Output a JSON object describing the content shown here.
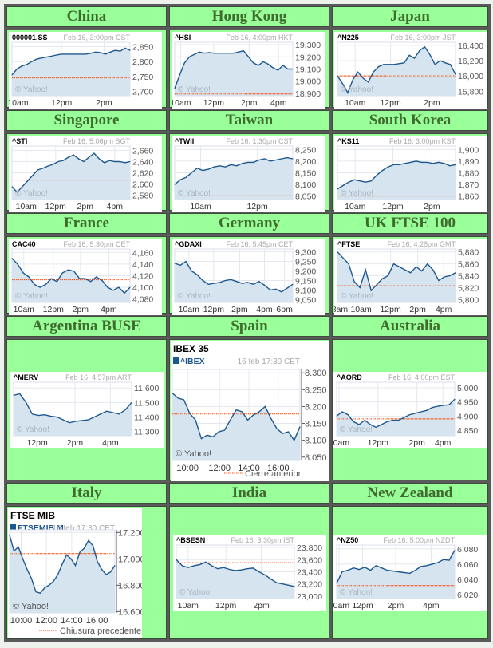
{
  "colors": {
    "cell": "#99ff99",
    "header_text": "#3f6b2f",
    "fill": "#d5e4ef",
    "line": "#1d5790",
    "prev_close": "#ff4400"
  },
  "chart_data": [
    {
      "type": "area",
      "region": "China",
      "symbol": "000001.SS",
      "date": "Feb 16, 3:00pm CST",
      "watermark": "© Yahoo!",
      "ylim": [
        2685,
        2865
      ],
      "yticks": [
        2700,
        2750,
        2800,
        2850
      ],
      "ytick_labels": [
        "2,700",
        "2,750",
        "2,800",
        "2,850"
      ],
      "xticks": [
        0.05,
        0.42,
        0.78
      ],
      "xtick_labels": [
        "10am",
        "12pm",
        "2pm"
      ],
      "prev_close": 2745,
      "values": [
        2755,
        2775,
        2785,
        2790,
        2800,
        2808,
        2812,
        2815,
        2818,
        2822,
        2825,
        2825,
        2825,
        2825,
        2825,
        2825,
        2828,
        2832,
        2830,
        2825,
        2832,
        2838,
        2835,
        2845,
        2838
      ]
    },
    {
      "type": "area",
      "region": "Hong Kong",
      "symbol": "^HSI",
      "date": "Feb 16, 4:00pm HKT",
      "watermark": "© Yahoo!",
      "ylim": [
        18880,
        19320
      ],
      "yticks": [
        18900,
        19000,
        19100,
        19200,
        19300
      ],
      "ytick_labels": [
        "18,900",
        "19,000",
        "19,100",
        "19,200",
        "19,300"
      ],
      "xticks": [
        0.05,
        0.33,
        0.63,
        0.88
      ],
      "xtick_labels": [
        "10am",
        "12pm",
        "2pm",
        "4pm"
      ],
      "prev_close": 18895,
      "values": [
        18940,
        19050,
        19150,
        19200,
        19220,
        19240,
        19230,
        19235,
        19230,
        19230,
        19230,
        19230,
        19230,
        19240,
        19250,
        19200,
        19150,
        19130,
        19160,
        19140,
        19110,
        19090,
        19130,
        19100,
        19100
      ]
    },
    {
      "type": "area",
      "region": "Japan",
      "symbol": "^N225",
      "date": "Feb 16, 3:00pm JST",
      "watermark": "© Yahoo!",
      "ylim": [
        15740,
        16440
      ],
      "yticks": [
        15800,
        16000,
        16200,
        16400
      ],
      "ytick_labels": [
        "15,800",
        "16,000",
        "16,200",
        "16,400"
      ],
      "xticks": [
        0.15,
        0.45,
        0.8
      ],
      "xtick_labels": [
        "10am",
        "12pm",
        "2pm"
      ],
      "prev_close": 16000,
      "values": [
        16000,
        15900,
        15780,
        15950,
        16050,
        15970,
        15920,
        16050,
        16120,
        16150,
        16150,
        16150,
        16160,
        16170,
        16270,
        16230,
        16330,
        16380,
        16280,
        16150,
        16200,
        16170,
        16150,
        16020
      ]
    },
    {
      "type": "area",
      "region": "Singapore",
      "symbol": "^STI",
      "date": "Feb 16, 5:06pm SGT",
      "watermark": "© Yahoo!",
      "ylim": [
        2572,
        2668
      ],
      "yticks": [
        2580,
        2600,
        2620,
        2640,
        2660
      ],
      "ytick_labels": [
        "2,580",
        "2,600",
        "2,620",
        "2,640",
        "2,660"
      ],
      "xticks": [
        0.12,
        0.37,
        0.62,
        0.87
      ],
      "xtick_labels": [
        "10am",
        "12pm",
        "2pm",
        "4pm"
      ],
      "prev_close": 2607,
      "values": [
        2595,
        2585,
        2595,
        2605,
        2615,
        2625,
        2628,
        2632,
        2635,
        2640,
        2642,
        2648,
        2652,
        2645,
        2640,
        2648,
        2655,
        2645,
        2638,
        2642,
        2640,
        2640,
        2638,
        2640
      ]
    },
    {
      "type": "area",
      "region": "Taiwan",
      "symbol": "^TWII",
      "date": "Feb 16, 1:30pm CST",
      "watermark": "© Yahoo!",
      "ylim": [
        8035,
        8265
      ],
      "yticks": [
        8050,
        8100,
        8150,
        8200,
        8250
      ],
      "ytick_labels": [
        "8,050",
        "8,100",
        "8,150",
        "8,200",
        "8,250"
      ],
      "xticks": [
        0.22,
        0.7
      ],
      "xtick_labels": [
        "10am",
        "12pm"
      ],
      "prev_close": 8051,
      "values": [
        8100,
        8120,
        8130,
        8150,
        8170,
        8160,
        8165,
        8175,
        8180,
        8175,
        8185,
        8180,
        8190,
        8195,
        8195,
        8205,
        8210,
        8200,
        8205,
        8210,
        8215,
        8210
      ]
    },
    {
      "type": "area",
      "region": "South Korea",
      "symbol": "^KS11",
      "date": "Feb 16, 3:00pm KST",
      "watermark": "© Yahoo!",
      "ylim": [
        1857,
        1903
      ],
      "yticks": [
        1860,
        1870,
        1880,
        1890,
        1900
      ],
      "ytick_labels": [
        "1,860",
        "1,870",
        "1,880",
        "1,890",
        "1,900"
      ],
      "xticks": [
        0.15,
        0.47,
        0.8
      ],
      "xtick_labels": [
        "10am",
        "12pm",
        "2pm"
      ],
      "prev_close": 1860,
      "values": [
        1866,
        1869,
        1872,
        1874,
        1873,
        1872,
        1873,
        1878,
        1882,
        1885,
        1887,
        1887,
        1888,
        1889,
        1890,
        1889,
        1889,
        1888,
        1889,
        1888,
        1886,
        1887
      ]
    },
    {
      "type": "area",
      "region": "France",
      "symbol": "CAC40",
      "date": "Feb 16, 5:30pm CET",
      "watermark": "© Yahoo!",
      "ylim": [
        4074,
        4166
      ],
      "yticks": [
        4080,
        4100,
        4120,
        4140,
        4160
      ],
      "ytick_labels": [
        "4,080",
        "4,100",
        "4,120",
        "4,140",
        "4,160"
      ],
      "xticks": [
        0.1,
        0.35,
        0.58,
        0.82
      ],
      "xtick_labels": [
        "10am",
        "12pm",
        "2pm",
        "4pm"
      ],
      "prev_close": 4113,
      "values": [
        4150,
        4140,
        4125,
        4118,
        4105,
        4100,
        4105,
        4115,
        4110,
        4125,
        4130,
        4128,
        4115,
        4115,
        4110,
        4118,
        4112,
        4100,
        4095,
        4100,
        4090,
        4100
      ]
    },
    {
      "type": "area",
      "region": "Germany",
      "symbol": "^GDAXI",
      "date": "Feb 16, 5:45pm CET",
      "watermark": "© Yahoo!",
      "ylim": [
        9035,
        9315
      ],
      "yticks": [
        9050,
        9100,
        9150,
        9200,
        9250,
        9300
      ],
      "ytick_labels": [
        "9,050",
        "9,100",
        "9,150",
        "9,200",
        "9,250",
        "9,300"
      ],
      "xticks": [
        0.12,
        0.33,
        0.55,
        0.76,
        0.93
      ],
      "xtick_labels": [
        "10am",
        "12pm",
        "2pm",
        "4pm",
        "6pm"
      ],
      "prev_close": 9200,
      "values": [
        9240,
        9230,
        9250,
        9200,
        9180,
        9150,
        9130,
        9135,
        9140,
        9150,
        9155,
        9145,
        9135,
        9140,
        9130,
        9145,
        9125,
        9100,
        9105,
        9090,
        9110,
        9130
      ]
    },
    {
      "type": "area",
      "region": "UK FTSE 100",
      "symbol": "^FTSE",
      "date": "Feb 16, 4:28pm GMT",
      "watermark": "© Yahoo!",
      "ylim": [
        5795,
        5885
      ],
      "yticks": [
        5800,
        5820,
        5840,
        5860,
        5880
      ],
      "ytick_labels": [
        "5,800",
        "5,820",
        "5,840",
        "5,860",
        "5,880"
      ],
      "xticks": [
        0.02,
        0.2,
        0.45,
        0.68,
        0.9
      ],
      "xtick_labels": [
        "8am",
        "10am",
        "12pm",
        "2pm",
        "4pm"
      ],
      "prev_close": 5823,
      "values": [
        5880,
        5870,
        5860,
        5830,
        5820,
        5850,
        5815,
        5825,
        5835,
        5840,
        5860,
        5855,
        5850,
        5845,
        5855,
        5848,
        5860,
        5850,
        5832,
        5838,
        5840,
        5845
      ]
    },
    {
      "type": "area",
      "region": "Argentina BUSE",
      "symbol": "^MERV",
      "date": "Feb 16, 4:57pm  ART",
      "watermark": "© Yahoo!",
      "ylim": [
        11270,
        11640
      ],
      "yticks": [
        11300,
        11400,
        11500,
        11600
      ],
      "ytick_labels": [
        "11,300",
        "11,400",
        "11,500",
        "11,600"
      ],
      "xticks": [
        0.2,
        0.52,
        0.82
      ],
      "xtick_labels": [
        "12pm",
        "2pm",
        "4pm"
      ],
      "prev_close": 11455,
      "values": [
        11550,
        11560,
        11500,
        11420,
        11410,
        11415,
        11405,
        11400,
        11380,
        11360,
        11370,
        11375,
        11380,
        11400,
        11420,
        11440,
        11430,
        11420,
        11450,
        11500
      ]
    },
    {
      "type": "area",
      "region": "Spain",
      "variant": "es",
      "title": "IBEX 35",
      "symbol": "^IBEX",
      "date": "16 feb 17:30 CET",
      "watermark": "© Yahoo!",
      "legend": "Cierre anterior",
      "ylim": [
        8040,
        8310
      ],
      "yticks": [
        8050,
        8100,
        8150,
        8200,
        8250,
        8300
      ],
      "ytick_labels": [
        "8.050",
        "8.100",
        "8.150",
        "8.200",
        "8.250",
        "8.300"
      ],
      "xticks": [
        0.12,
        0.37,
        0.6,
        0.83
      ],
      "xtick_labels": [
        "10:00",
        "12:00",
        "14:00",
        "16:00"
      ],
      "prev_close": 8178,
      "values": [
        8240,
        8225,
        8220,
        8180,
        8160,
        8105,
        8115,
        8110,
        8125,
        8130,
        8160,
        8190,
        8185,
        8160,
        8175,
        8185,
        8200,
        8165,
        8135,
        8120,
        8125,
        8100,
        8140
      ]
    },
    {
      "type": "area",
      "region": "Australia",
      "symbol": "^AORD",
      "date": "Feb 16, 4:00pm EST",
      "watermark": "© Yahoo!",
      "ylim": [
        4830,
        5020
      ],
      "yticks": [
        4850,
        4900,
        4950,
        5000
      ],
      "ytick_labels": [
        "4,850",
        "4,900",
        "4,950",
        "5,000"
      ],
      "xticks": [
        0.02,
        0.35,
        0.68,
        0.9
      ],
      "xtick_labels": [
        "10am",
        "12pm",
        "2pm",
        "4pm"
      ],
      "prev_close": 4890,
      "values": [
        4900,
        4915,
        4905,
        4880,
        4870,
        4885,
        4870,
        4860,
        4870,
        4880,
        4885,
        4885,
        4895,
        4905,
        4910,
        4915,
        4920,
        4930,
        4935,
        4938,
        4940,
        4960
      ]
    },
    {
      "type": "area",
      "region": "Italy",
      "variant": "it",
      "title": "FTSE MIB",
      "symbol": "FTSEMIB.MI",
      "date": "16 feb 17:30 CET",
      "watermark": "© Yahoo!",
      "legend": "Chiusura precedente",
      "ylim": [
        16590,
        17220
      ],
      "yticks": [
        16600,
        16800,
        17000,
        17200
      ],
      "ytick_labels": [
        "16.600",
        "16.800",
        "17.000",
        "17.200"
      ],
      "xticks": [
        0.11,
        0.35,
        0.59,
        0.83
      ],
      "xtick_labels": [
        "10:00",
        "12:00",
        "14:00",
        "16:00"
      ],
      "prev_close": 17040,
      "values": [
        17180,
        17060,
        17090,
        17000,
        16920,
        16850,
        16750,
        16740,
        16780,
        16800,
        16830,
        16880,
        16960,
        17030,
        17000,
        16950,
        17050,
        17080,
        17140,
        17100,
        16980,
        16920,
        16880,
        16900,
        16950
      ]
    },
    {
      "type": "area",
      "region": "India",
      "symbol": "^BSESN",
      "date": "Feb 16, 3:30pm IST",
      "watermark": "© Yahoo!",
      "ylim": [
        22960,
        23840
      ],
      "yticks": [
        23000,
        23200,
        23400,
        23600,
        23800
      ],
      "ytick_labels": [
        "23,000",
        "23,200",
        "23,400",
        "23,600",
        "23,800"
      ],
      "xticks": [
        0.1,
        0.42,
        0.72
      ],
      "xtick_labels": [
        "10am",
        "12pm",
        "2pm"
      ],
      "prev_close": 23550,
      "values": [
        23600,
        23500,
        23470,
        23500,
        23520,
        23560,
        23500,
        23450,
        23470,
        23440,
        23420,
        23430,
        23450,
        23460,
        23400,
        23350,
        23280,
        23220,
        23200,
        23180,
        23160
      ]
    },
    {
      "type": "area",
      "region": "New Zealand",
      "symbol": "^NZ50",
      "date": "Feb 16, 5:00pm NZDT",
      "watermark": "© Yahoo!",
      "ylim": [
        6015,
        6085
      ],
      "yticks": [
        6020,
        6040,
        6060,
        6080
      ],
      "ytick_labels": [
        "6,020",
        "6,040",
        "6,060",
        "6,080"
      ],
      "xticks": [
        0.02,
        0.22,
        0.5,
        0.8
      ],
      "xtick_labels": [
        "10am",
        "12pm",
        "2pm",
        "4pm"
      ],
      "prev_close": 6032,
      "values": [
        6035,
        6050,
        6052,
        6055,
        6053,
        6056,
        6052,
        6058,
        6055,
        6052,
        6051,
        6050,
        6049,
        6048,
        6052,
        6057,
        6058,
        6060,
        6062,
        6066,
        6065,
        6078
      ]
    }
  ]
}
